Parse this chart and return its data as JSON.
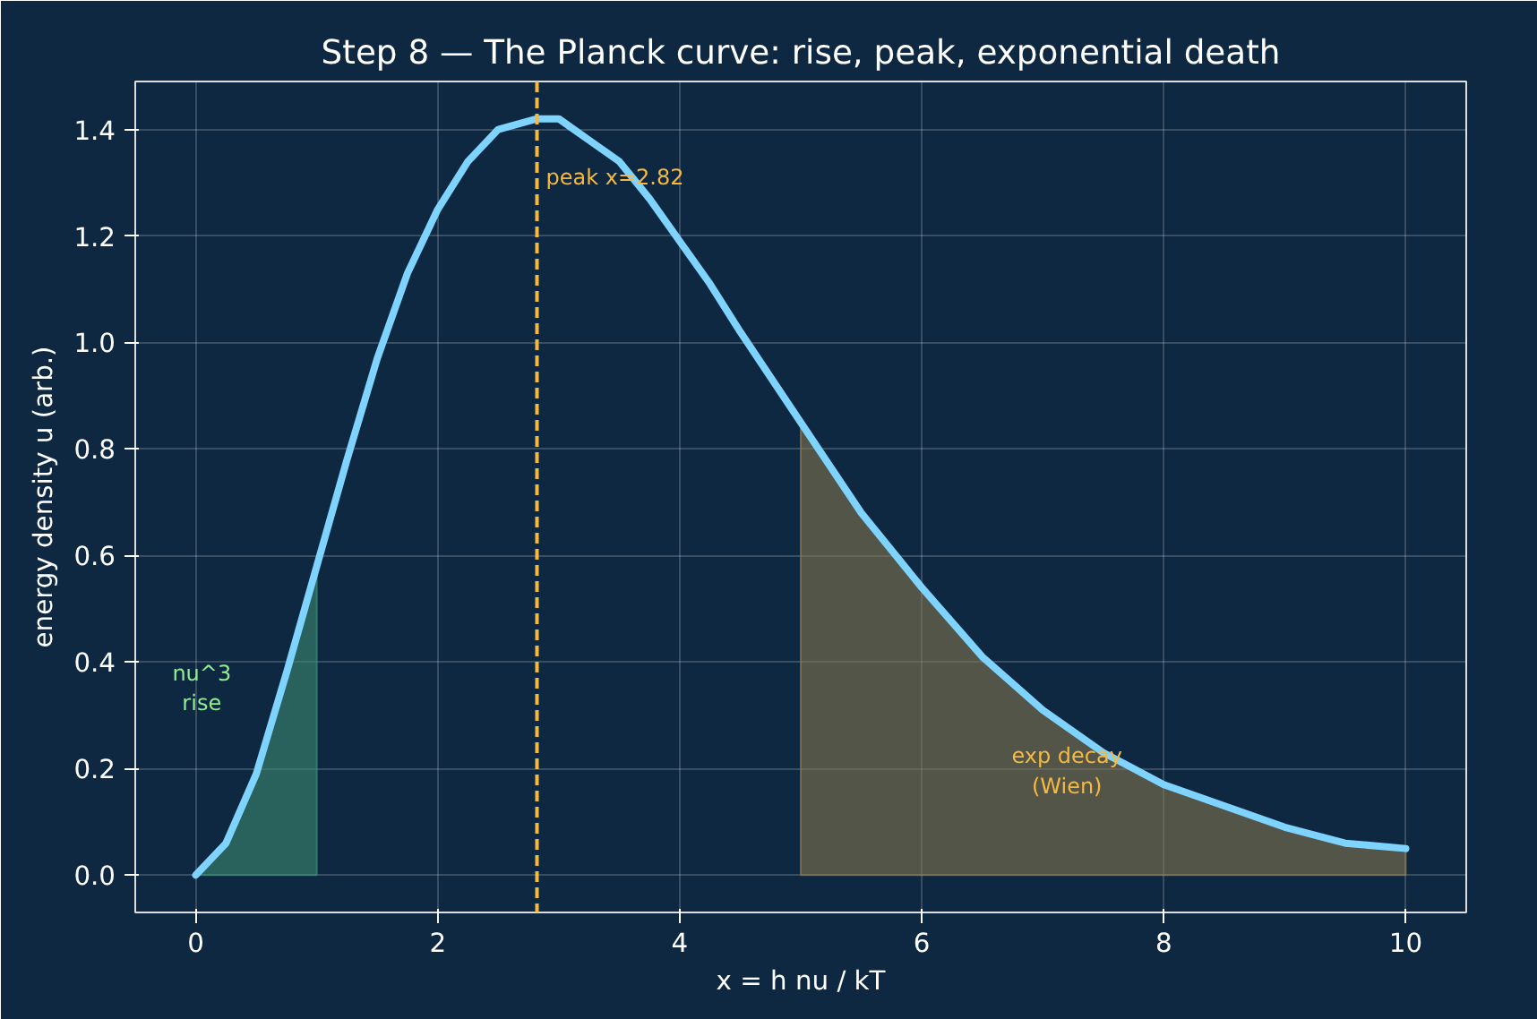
{
  "chart_data": {
    "type": "line",
    "title": "Step 8 — The Planck curve: rise, peak, exponential death",
    "xlabel": "x = h nu / kT",
    "ylabel": "energy density u (arb.)",
    "series": [
      {
        "type": "area",
        "color": "#3f8f74",
        "x": [
          0,
          0.25,
          0.5,
          0.75,
          1
        ],
        "values": [
          0,
          0.06,
          0.19,
          0.38,
          0.58
        ]
      },
      {
        "type": "area",
        "color": "#8a7a4e",
        "x": [
          5,
          5.5,
          6,
          6.5,
          7,
          7.5,
          8,
          8.5,
          9,
          9.5,
          10
        ],
        "values": [
          0.85,
          0.68,
          0.54,
          0.41,
          0.31,
          0.23,
          0.17,
          0.13,
          0.09,
          0.06,
          0.05
        ]
      },
      {
        "color": "#7fd3ff",
        "x": [
          0,
          0.25,
          0.5,
          0.75,
          1,
          1.25,
          1.5,
          1.75,
          2,
          2.25,
          2.5,
          2.82,
          3,
          3.25,
          3.5,
          3.75,
          4,
          4.25,
          4.5,
          5,
          5.5,
          6,
          6.5,
          7,
          7.5,
          8,
          8.5,
          9,
          9.5,
          10
        ],
        "values": [
          0,
          0.06,
          0.19,
          0.38,
          0.58,
          0.78,
          0.97,
          1.13,
          1.25,
          1.34,
          1.4,
          1.42,
          1.42,
          1.38,
          1.34,
          1.27,
          1.19,
          1.11,
          1.02,
          0.85,
          0.68,
          0.54,
          0.41,
          0.31,
          0.23,
          0.17,
          0.13,
          0.09,
          0.06,
          0.05
        ]
      }
    ],
    "ref_lines": [
      {
        "axis": "x",
        "value": 2.82,
        "label": "peak x=2.82",
        "color": "#f5b942",
        "line_style": "dashed"
      }
    ],
    "annotations": [
      "nu^3\nrise",
      "exp decay\n(Wien)"
    ],
    "xlim": [
      -0.5,
      10.5
    ],
    "ylim": [
      -0.07,
      1.49
    ],
    "xticks": [
      0,
      2,
      4,
      6,
      8,
      10
    ],
    "yticks": [
      {
        "value": 0,
        "label": "0.0"
      },
      {
        "value": 0.2,
        "label": "0.2"
      },
      {
        "value": 0.4,
        "label": "0.4"
      },
      {
        "value": 0.6,
        "label": "0.6"
      },
      {
        "value": 0.8,
        "label": "0.8"
      },
      {
        "value": 1.0,
        "label": "1.0"
      },
      {
        "value": 1.2,
        "label": "1.2"
      },
      {
        "value": 1.4,
        "label": "1.4"
      }
    ],
    "grid": true
  }
}
